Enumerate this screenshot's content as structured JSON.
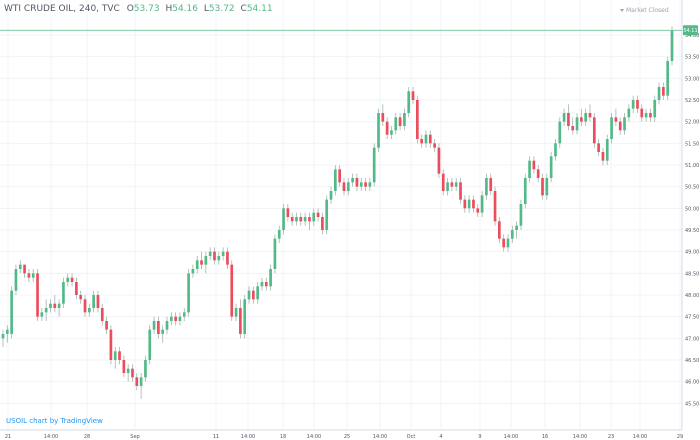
{
  "header": {
    "symbol": "WTI CRUDE OIL, 240, TVC",
    "open_label": "O",
    "open_value": "53.73",
    "high_label": "H",
    "high_value": "54.16",
    "low_label": "L",
    "low_value": "53.72",
    "close_label": "C",
    "close_value": "54.11",
    "market_status": "Market Closed"
  },
  "footer": {
    "attribution": "USOIL chart by TradingView"
  },
  "colors": {
    "up": "#53b987",
    "down": "#eb4d5c",
    "wick": "#9fb5ad",
    "price_line": "#53b987",
    "grid": "#f0f3fa",
    "axis_text": "#4f5966",
    "background": "#ffffff"
  },
  "chart_data": {
    "type": "candlestick",
    "y_axis_side": "right",
    "ylim": [
      45.3,
      54.3
    ],
    "y_ticks": [
      "54.00",
      "53.50",
      "53.00",
      "52.50",
      "52.00",
      "51.50",
      "51.00",
      "50.50",
      "50.00",
      "49.50",
      "49.00",
      "48.50",
      "48.00",
      "47.50",
      "47.00",
      "46.50",
      "46.00",
      "45.50"
    ],
    "x_ticks": [
      "21",
      "14:00",
      "28",
      "Sep",
      "11",
      "14:00",
      "18",
      "14:00",
      "25",
      "14:00",
      "Oct",
      "4",
      "9",
      "14:00",
      "16",
      "14:00",
      "23",
      "14:00",
      "29"
    ],
    "last_price": "54.11",
    "ohlc": [
      [
        47.0,
        47.2,
        46.8,
        47.1
      ],
      [
        47.1,
        47.3,
        46.9,
        47.2
      ],
      [
        47.1,
        48.2,
        47.0,
        48.1
      ],
      [
        48.1,
        48.7,
        48.0,
        48.6
      ],
      [
        48.6,
        48.8,
        48.5,
        48.7
      ],
      [
        48.7,
        48.7,
        48.4,
        48.5
      ],
      [
        48.5,
        48.6,
        48.3,
        48.4
      ],
      [
        48.4,
        48.6,
        48.3,
        48.5
      ],
      [
        48.5,
        48.6,
        47.4,
        47.5
      ],
      [
        47.5,
        47.7,
        47.4,
        47.6
      ],
      [
        47.6,
        47.9,
        47.4,
        47.7
      ],
      [
        47.7,
        47.9,
        47.6,
        47.8
      ],
      [
        47.8,
        48.0,
        47.6,
        47.7
      ],
      [
        47.7,
        47.9,
        47.5,
        47.8
      ],
      [
        47.8,
        48.4,
        47.7,
        48.3
      ],
      [
        48.3,
        48.5,
        48.2,
        48.4
      ],
      [
        48.4,
        48.5,
        48.2,
        48.3
      ],
      [
        48.3,
        48.4,
        47.9,
        48.0
      ],
      [
        48.0,
        48.1,
        47.8,
        47.9
      ],
      [
        47.9,
        48.0,
        47.5,
        47.6
      ],
      [
        47.6,
        47.8,
        47.5,
        47.7
      ],
      [
        47.7,
        48.1,
        47.6,
        48.0
      ],
      [
        48.0,
        48.1,
        47.6,
        47.7
      ],
      [
        47.7,
        47.8,
        47.3,
        47.4
      ],
      [
        47.4,
        47.5,
        47.1,
        47.2
      ],
      [
        47.2,
        47.3,
        46.4,
        46.5
      ],
      [
        46.5,
        46.8,
        46.3,
        46.7
      ],
      [
        46.7,
        46.8,
        46.4,
        46.5
      ],
      [
        46.5,
        46.6,
        46.1,
        46.2
      ],
      [
        46.2,
        46.4,
        46.0,
        46.3
      ],
      [
        46.3,
        46.4,
        46.0,
        46.1
      ],
      [
        46.1,
        46.2,
        45.8,
        45.9
      ],
      [
        45.9,
        46.2,
        45.6,
        46.1
      ],
      [
        46.1,
        46.6,
        46.0,
        46.5
      ],
      [
        46.5,
        47.3,
        46.4,
        47.2
      ],
      [
        47.2,
        47.5,
        47.1,
        47.4
      ],
      [
        47.4,
        47.5,
        47.0,
        47.1
      ],
      [
        47.1,
        47.3,
        46.9,
        47.2
      ],
      [
        47.2,
        47.5,
        47.1,
        47.4
      ],
      [
        47.4,
        47.6,
        47.3,
        47.5
      ],
      [
        47.5,
        47.6,
        47.3,
        47.4
      ],
      [
        47.4,
        47.6,
        47.3,
        47.5
      ],
      [
        47.5,
        47.7,
        47.4,
        47.6
      ],
      [
        47.6,
        48.6,
        47.5,
        48.5
      ],
      [
        48.5,
        48.7,
        48.4,
        48.6
      ],
      [
        48.6,
        48.9,
        48.5,
        48.8
      ],
      [
        48.8,
        49.0,
        48.6,
        48.7
      ],
      [
        48.7,
        49.0,
        48.5,
        48.9
      ],
      [
        48.9,
        49.1,
        48.8,
        49.0
      ],
      [
        49.0,
        49.1,
        48.7,
        48.8
      ],
      [
        48.8,
        49.0,
        48.7,
        48.9
      ],
      [
        48.9,
        49.1,
        48.8,
        49.0
      ],
      [
        49.0,
        49.1,
        48.6,
        48.7
      ],
      [
        48.7,
        48.8,
        47.4,
        47.5
      ],
      [
        47.5,
        47.8,
        47.4,
        47.7
      ],
      [
        47.7,
        47.9,
        47.0,
        47.1
      ],
      [
        47.1,
        48.0,
        47.0,
        47.9
      ],
      [
        47.9,
        48.2,
        47.8,
        48.1
      ],
      [
        48.1,
        48.2,
        47.8,
        47.9
      ],
      [
        47.9,
        48.3,
        47.8,
        48.2
      ],
      [
        48.2,
        48.4,
        48.1,
        48.3
      ],
      [
        48.3,
        48.4,
        48.1,
        48.2
      ],
      [
        48.2,
        48.7,
        48.1,
        48.6
      ],
      [
        48.6,
        49.4,
        48.5,
        49.3
      ],
      [
        49.3,
        49.6,
        49.2,
        49.5
      ],
      [
        49.5,
        50.1,
        49.4,
        50.0
      ],
      [
        50.0,
        50.1,
        49.7,
        49.8
      ],
      [
        49.8,
        49.9,
        49.6,
        49.7
      ],
      [
        49.7,
        49.9,
        49.6,
        49.8
      ],
      [
        49.8,
        49.9,
        49.6,
        49.7
      ],
      [
        49.7,
        49.9,
        49.6,
        49.8
      ],
      [
        49.8,
        49.9,
        49.5,
        49.7
      ],
      [
        49.7,
        50.0,
        49.6,
        49.9
      ],
      [
        49.9,
        50.0,
        49.7,
        49.8
      ],
      [
        49.8,
        49.9,
        49.4,
        49.5
      ],
      [
        49.5,
        50.3,
        49.4,
        50.2
      ],
      [
        50.2,
        50.5,
        50.1,
        50.4
      ],
      [
        50.4,
        51.0,
        50.3,
        50.9
      ],
      [
        50.9,
        51.0,
        50.5,
        50.6
      ],
      [
        50.6,
        50.7,
        50.3,
        50.4
      ],
      [
        50.4,
        50.7,
        50.3,
        50.6
      ],
      [
        50.6,
        50.8,
        50.5,
        50.7
      ],
      [
        50.7,
        50.8,
        50.4,
        50.5
      ],
      [
        50.5,
        50.7,
        50.4,
        50.6
      ],
      [
        50.6,
        50.7,
        50.4,
        50.5
      ],
      [
        50.5,
        50.7,
        50.4,
        50.6
      ],
      [
        50.6,
        51.5,
        50.5,
        51.4
      ],
      [
        51.4,
        52.3,
        51.3,
        52.2
      ],
      [
        52.2,
        52.4,
        51.9,
        52.0
      ],
      [
        52.0,
        52.1,
        51.6,
        51.7
      ],
      [
        51.7,
        51.9,
        51.6,
        51.8
      ],
      [
        51.8,
        52.2,
        51.7,
        52.1
      ],
      [
        52.1,
        52.2,
        51.8,
        51.9
      ],
      [
        51.9,
        52.3,
        51.8,
        52.2
      ],
      [
        52.2,
        52.8,
        52.1,
        52.7
      ],
      [
        52.7,
        52.8,
        52.4,
        52.5
      ],
      [
        52.5,
        52.6,
        51.5,
        51.6
      ],
      [
        51.6,
        51.7,
        51.4,
        51.5
      ],
      [
        51.5,
        51.8,
        51.4,
        51.7
      ],
      [
        51.7,
        51.8,
        51.4,
        51.5
      ],
      [
        51.5,
        51.6,
        51.3,
        51.4
      ],
      [
        51.4,
        51.5,
        50.7,
        50.8
      ],
      [
        50.8,
        50.9,
        50.3,
        50.4
      ],
      [
        50.4,
        50.7,
        50.3,
        50.6
      ],
      [
        50.6,
        50.7,
        50.4,
        50.5
      ],
      [
        50.5,
        50.7,
        50.4,
        50.6
      ],
      [
        50.6,
        50.7,
        50.1,
        50.2
      ],
      [
        50.2,
        50.3,
        49.9,
        50.0
      ],
      [
        50.0,
        50.3,
        49.9,
        50.2
      ],
      [
        50.2,
        50.3,
        49.9,
        50.0
      ],
      [
        50.0,
        50.1,
        49.8,
        49.9
      ],
      [
        49.9,
        50.4,
        49.8,
        50.3
      ],
      [
        50.3,
        50.8,
        50.2,
        50.7
      ],
      [
        50.7,
        50.8,
        50.3,
        50.4
      ],
      [
        50.4,
        50.5,
        49.6,
        49.7
      ],
      [
        49.7,
        49.8,
        49.2,
        49.3
      ],
      [
        49.3,
        49.4,
        49.0,
        49.1
      ],
      [
        49.1,
        49.4,
        49.0,
        49.3
      ],
      [
        49.3,
        49.6,
        49.2,
        49.5
      ],
      [
        49.5,
        49.7,
        49.3,
        49.6
      ],
      [
        49.6,
        50.2,
        49.5,
        50.1
      ],
      [
        50.1,
        50.8,
        50.0,
        50.7
      ],
      [
        50.7,
        51.2,
        50.6,
        51.1
      ],
      [
        51.1,
        51.2,
        50.8,
        50.9
      ],
      [
        50.9,
        51.0,
        50.6,
        50.7
      ],
      [
        50.7,
        50.8,
        50.2,
        50.3
      ],
      [
        50.3,
        50.8,
        50.2,
        50.7
      ],
      [
        50.7,
        51.3,
        50.6,
        51.2
      ],
      [
        51.2,
        51.6,
        51.1,
        51.5
      ],
      [
        51.5,
        52.1,
        51.4,
        52.0
      ],
      [
        52.0,
        52.3,
        51.9,
        52.2
      ],
      [
        52.2,
        52.4,
        51.8,
        51.9
      ],
      [
        51.9,
        52.1,
        51.7,
        51.8
      ],
      [
        51.8,
        52.2,
        51.7,
        52.1
      ],
      [
        52.1,
        52.3,
        51.9,
        52.0
      ],
      [
        52.0,
        52.3,
        51.9,
        52.2
      ],
      [
        52.2,
        52.4,
        52.0,
        52.1
      ],
      [
        52.1,
        52.2,
        51.4,
        51.5
      ],
      [
        51.5,
        51.6,
        51.2,
        51.3
      ],
      [
        51.3,
        51.4,
        51.0,
        51.1
      ],
      [
        51.1,
        51.7,
        51.0,
        51.6
      ],
      [
        51.6,
        52.2,
        51.5,
        52.1
      ],
      [
        52.1,
        52.3,
        51.9,
        52.0
      ],
      [
        52.0,
        52.1,
        51.7,
        51.8
      ],
      [
        51.8,
        52.2,
        51.7,
        52.1
      ],
      [
        52.1,
        52.4,
        52.0,
        52.3
      ],
      [
        52.3,
        52.6,
        52.2,
        52.5
      ],
      [
        52.5,
        52.6,
        52.2,
        52.3
      ],
      [
        52.3,
        52.4,
        52.0,
        52.1
      ],
      [
        52.1,
        52.3,
        52.0,
        52.2
      ],
      [
        52.2,
        52.3,
        52.0,
        52.1
      ],
      [
        52.1,
        52.6,
        52.0,
        52.5
      ],
      [
        52.5,
        52.9,
        52.4,
        52.8
      ],
      [
        52.8,
        52.9,
        52.5,
        52.6
      ],
      [
        52.6,
        53.5,
        52.5,
        53.4
      ],
      [
        53.4,
        54.2,
        53.3,
        54.1
      ]
    ]
  }
}
